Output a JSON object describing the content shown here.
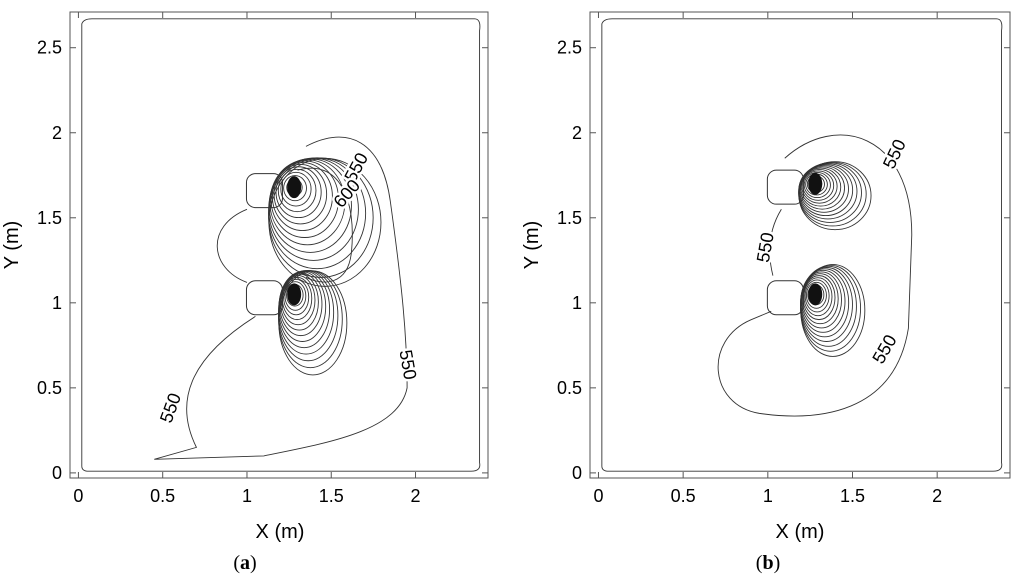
{
  "chart_data": [
    {
      "type": "contour",
      "panel_label": "a",
      "xlabel": "X (m)",
      "ylabel": "Y (m)",
      "xlim": [
        -0.05,
        2.43
      ],
      "ylim": [
        -0.03,
        2.71
      ],
      "xticks": [
        0,
        0.5,
        1,
        1.5,
        2
      ],
      "xtick_labels": [
        "0",
        "0.5",
        "1",
        "1.5",
        "2"
      ],
      "yticks": [
        0,
        0.5,
        1,
        1.5,
        2,
        2.5
      ],
      "ytick_labels": [
        "0",
        "0.5",
        "1",
        "1.5",
        "2",
        "2.5"
      ],
      "contour_labels": [
        {
          "text": "550",
          "x": 1.68,
          "y": 1.78
        },
        {
          "text": "600",
          "x": 1.62,
          "y": 1.62
        },
        {
          "text": "550",
          "x": 1.92,
          "y": 0.63
        },
        {
          "text": "550",
          "x": 0.58,
          "y": 0.37
        }
      ],
      "heat_sources": [
        {
          "x": 1.28,
          "y": 1.68
        },
        {
          "x": 1.28,
          "y": 1.05
        }
      ]
    },
    {
      "type": "contour",
      "panel_label": "b",
      "xlabel": "X (m)",
      "ylabel": "Y (m)",
      "xlim": [
        -0.05,
        2.43
      ],
      "ylim": [
        -0.03,
        2.71
      ],
      "xticks": [
        0,
        0.5,
        1,
        1.5,
        2
      ],
      "xtick_labels": [
        "0",
        "0.5",
        "1",
        "1.5",
        "2"
      ],
      "yticks": [
        0,
        0.5,
        1,
        1.5,
        2,
        2.5
      ],
      "ytick_labels": [
        "0",
        "0.5",
        "1",
        "1.5",
        "2",
        "2.5"
      ],
      "contour_labels": [
        {
          "text": "550",
          "x": 1.78,
          "y": 1.86
        },
        {
          "text": "550",
          "x": 1.02,
          "y": 1.32
        },
        {
          "text": "550",
          "x": 1.72,
          "y": 0.71
        }
      ],
      "heat_sources": [
        {
          "x": 1.28,
          "y": 1.7
        },
        {
          "x": 1.28,
          "y": 1.05
        }
      ]
    }
  ]
}
